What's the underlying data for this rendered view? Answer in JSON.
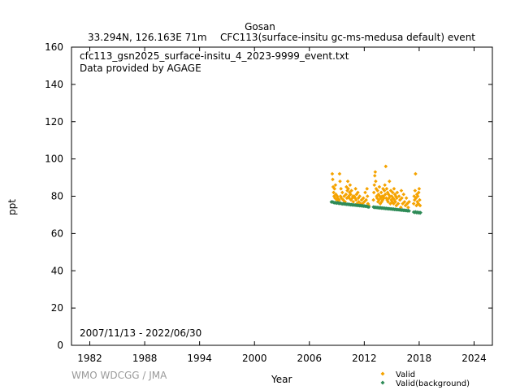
{
  "header": {
    "station": "Gosan",
    "location": "33.294N, 126.163E 71m",
    "species": "CFC113(surface-insitu gc-ms-medusa default) event"
  },
  "file_info": {
    "filename": "cfc113_gsn2025_surface-insitu_4_2023-9999_event.txt",
    "provider": "Data provided by AGAGE",
    "date_range": "2007/11/13 - 2022/06/30"
  },
  "footer": {
    "credit": "WMO WDCGG / JMA"
  },
  "colors": {
    "valid": "#f5a300",
    "background": "#2e8b57",
    "credit": "#9a9a9a"
  },
  "chart_data": {
    "type": "scatter",
    "xlabel": "Year",
    "ylabel": "ppt",
    "xlim": [
      1980,
      2026
    ],
    "ylim": [
      0,
      160
    ],
    "x_ticks": [
      1982,
      1988,
      1994,
      2000,
      2006,
      2012,
      2018,
      2024
    ],
    "y_ticks": [
      0,
      20,
      40,
      60,
      80,
      100,
      120,
      140,
      160
    ],
    "legend_position": "bottom-right, outside plot",
    "series": [
      {
        "name": "Valid",
        "marker": "diamond",
        "color": "#f5a300",
        "points": [
          [
            2008.5,
            92
          ],
          [
            2008.55,
            89
          ],
          [
            2008.6,
            85
          ],
          [
            2008.65,
            82
          ],
          [
            2008.7,
            80
          ],
          [
            2008.75,
            84
          ],
          [
            2008.8,
            79
          ],
          [
            2008.85,
            86
          ],
          [
            2008.9,
            81
          ],
          [
            2009.0,
            78
          ],
          [
            2009.05,
            80
          ],
          [
            2009.1,
            79
          ],
          [
            2009.2,
            77
          ],
          [
            2009.25,
            78
          ],
          [
            2009.3,
            92
          ],
          [
            2009.35,
            88
          ],
          [
            2009.4,
            80
          ],
          [
            2009.45,
            84
          ],
          [
            2009.5,
            79
          ],
          [
            2009.6,
            82
          ],
          [
            2009.7,
            78
          ],
          [
            2009.8,
            80
          ],
          [
            2009.9,
            77
          ],
          [
            2010.0,
            81
          ],
          [
            2010.05,
            85
          ],
          [
            2010.1,
            79
          ],
          [
            2010.15,
            83
          ],
          [
            2010.2,
            88
          ],
          [
            2010.25,
            84
          ],
          [
            2010.3,
            80
          ],
          [
            2010.35,
            79
          ],
          [
            2010.4,
            82
          ],
          [
            2010.45,
            86
          ],
          [
            2010.5,
            81
          ],
          [
            2010.55,
            78
          ],
          [
            2010.6,
            83
          ],
          [
            2010.7,
            79
          ],
          [
            2010.75,
            80
          ],
          [
            2010.8,
            77
          ],
          [
            2010.9,
            80
          ],
          [
            2011.0,
            79
          ],
          [
            2011.05,
            84
          ],
          [
            2011.1,
            78
          ],
          [
            2011.15,
            81
          ],
          [
            2011.2,
            76
          ],
          [
            2011.3,
            82
          ],
          [
            2011.35,
            79
          ],
          [
            2011.4,
            77
          ],
          [
            2011.5,
            80
          ],
          [
            2011.6,
            76
          ],
          [
            2011.7,
            78
          ],
          [
            2011.8,
            76
          ],
          [
            2011.9,
            79
          ],
          [
            2012.0,
            77
          ],
          [
            2012.1,
            82
          ],
          [
            2012.2,
            78
          ],
          [
            2012.3,
            84
          ],
          [
            2012.35,
            80
          ],
          [
            2012.4,
            76
          ],
          [
            2012.5,
            75
          ],
          [
            2013.0,
            78
          ],
          [
            2013.05,
            82
          ],
          [
            2013.1,
            86
          ],
          [
            2013.15,
            91
          ],
          [
            2013.2,
            93
          ],
          [
            2013.25,
            88
          ],
          [
            2013.3,
            84
          ],
          [
            2013.35,
            80
          ],
          [
            2013.4,
            79
          ],
          [
            2013.45,
            83
          ],
          [
            2013.5,
            77
          ],
          [
            2013.55,
            81
          ],
          [
            2013.6,
            78
          ],
          [
            2013.65,
            85
          ],
          [
            2013.7,
            80
          ],
          [
            2013.75,
            76
          ],
          [
            2013.8,
            79
          ],
          [
            2013.85,
            82
          ],
          [
            2013.9,
            77
          ],
          [
            2013.95,
            80
          ],
          [
            2014.0,
            78
          ],
          [
            2014.05,
            84
          ],
          [
            2014.1,
            80
          ],
          [
            2014.15,
            79
          ],
          [
            2014.2,
            83
          ],
          [
            2014.25,
            86
          ],
          [
            2014.3,
            81
          ],
          [
            2014.35,
            96
          ],
          [
            2014.4,
            79
          ],
          [
            2014.45,
            84
          ],
          [
            2014.5,
            78
          ],
          [
            2014.55,
            82
          ],
          [
            2014.6,
            77
          ],
          [
            2014.65,
            81
          ],
          [
            2014.7,
            79
          ],
          [
            2014.75,
            88
          ],
          [
            2014.8,
            80
          ],
          [
            2014.85,
            76
          ],
          [
            2014.9,
            83
          ],
          [
            2014.95,
            78
          ],
          [
            2015.0,
            80
          ],
          [
            2015.05,
            77
          ],
          [
            2015.1,
            82
          ],
          [
            2015.15,
            79
          ],
          [
            2015.2,
            76
          ],
          [
            2015.25,
            84
          ],
          [
            2015.3,
            78
          ],
          [
            2015.35,
            81
          ],
          [
            2015.4,
            77
          ],
          [
            2015.45,
            80
          ],
          [
            2015.5,
            75
          ],
          [
            2015.55,
            79
          ],
          [
            2015.6,
            82
          ],
          [
            2015.7,
            76
          ],
          [
            2015.8,
            80
          ],
          [
            2015.9,
            78
          ],
          [
            2016.0,
            74
          ],
          [
            2016.05,
            83
          ],
          [
            2016.1,
            79
          ],
          [
            2016.2,
            76
          ],
          [
            2016.3,
            81
          ],
          [
            2016.4,
            77
          ],
          [
            2016.5,
            75
          ],
          [
            2016.6,
            79
          ],
          [
            2016.7,
            76
          ],
          [
            2016.8,
            74
          ],
          [
            2016.9,
            77
          ],
          [
            2017.4,
            76
          ],
          [
            2017.45,
            80
          ],
          [
            2017.5,
            78
          ],
          [
            2017.55,
            83
          ],
          [
            2017.6,
            92
          ],
          [
            2017.65,
            79
          ],
          [
            2017.7,
            75
          ],
          [
            2017.75,
            81
          ],
          [
            2017.8,
            77
          ],
          [
            2017.85,
            80
          ],
          [
            2017.9,
            76
          ],
          [
            2017.95,
            82
          ],
          [
            2018.0,
            84
          ],
          [
            2018.05,
            78
          ],
          [
            2018.1,
            75
          ]
        ]
      },
      {
        "name": "Valid(background)",
        "marker": "diamond",
        "color": "#2e8b57",
        "points": [
          [
            2008.4,
            76.9
          ],
          [
            2008.5,
            77.0
          ],
          [
            2008.6,
            76.8
          ],
          [
            2008.7,
            76.5
          ],
          [
            2008.8,
            76.6
          ],
          [
            2008.9,
            76.4
          ],
          [
            2009.0,
            76.3
          ],
          [
            2009.1,
            76.5
          ],
          [
            2009.2,
            76.2
          ],
          [
            2009.3,
            76.1
          ],
          [
            2009.4,
            76.3
          ],
          [
            2009.5,
            76.0
          ],
          [
            2009.6,
            75.9
          ],
          [
            2009.7,
            76.0
          ],
          [
            2009.8,
            75.8
          ],
          [
            2009.9,
            75.9
          ],
          [
            2010.0,
            75.7
          ],
          [
            2010.1,
            75.6
          ],
          [
            2010.2,
            75.8
          ],
          [
            2010.3,
            75.5
          ],
          [
            2010.4,
            75.6
          ],
          [
            2010.5,
            75.4
          ],
          [
            2010.6,
            75.5
          ],
          [
            2010.7,
            75.3
          ],
          [
            2010.8,
            75.4
          ],
          [
            2010.9,
            75.2
          ],
          [
            2011.0,
            75.3
          ],
          [
            2011.1,
            75.1
          ],
          [
            2011.2,
            75.2
          ],
          [
            2011.3,
            75.0
          ],
          [
            2011.4,
            75.1
          ],
          [
            2011.5,
            74.9
          ],
          [
            2011.6,
            75.0
          ],
          [
            2011.7,
            74.8
          ],
          [
            2011.8,
            74.9
          ],
          [
            2011.9,
            74.7
          ],
          [
            2012.0,
            74.8
          ],
          [
            2012.1,
            74.6
          ],
          [
            2012.2,
            74.7
          ],
          [
            2012.3,
            74.5
          ],
          [
            2012.4,
            74.3
          ],
          [
            2012.5,
            74.2
          ],
          [
            2013.0,
            74.2
          ],
          [
            2013.1,
            74.0
          ],
          [
            2013.2,
            74.1
          ],
          [
            2013.3,
            73.9
          ],
          [
            2013.4,
            74.0
          ],
          [
            2013.5,
            73.8
          ],
          [
            2013.6,
            73.9
          ],
          [
            2013.7,
            73.7
          ],
          [
            2013.8,
            73.8
          ],
          [
            2013.9,
            73.6
          ],
          [
            2014.0,
            73.7
          ],
          [
            2014.1,
            73.5
          ],
          [
            2014.2,
            73.6
          ],
          [
            2014.3,
            73.4
          ],
          [
            2014.4,
            73.5
          ],
          [
            2014.5,
            73.3
          ],
          [
            2014.6,
            73.4
          ],
          [
            2014.7,
            73.2
          ],
          [
            2014.8,
            73.3
          ],
          [
            2014.9,
            73.1
          ],
          [
            2015.0,
            73.2
          ],
          [
            2015.1,
            73.0
          ],
          [
            2015.2,
            73.1
          ],
          [
            2015.3,
            72.9
          ],
          [
            2015.4,
            73.0
          ],
          [
            2015.5,
            72.8
          ],
          [
            2015.6,
            72.9
          ],
          [
            2015.7,
            72.7
          ],
          [
            2015.8,
            72.8
          ],
          [
            2015.9,
            72.6
          ],
          [
            2016.0,
            72.7
          ],
          [
            2016.1,
            72.5
          ],
          [
            2016.2,
            72.6
          ],
          [
            2016.3,
            72.4
          ],
          [
            2016.4,
            72.5
          ],
          [
            2016.5,
            72.3
          ],
          [
            2016.6,
            72.4
          ],
          [
            2016.7,
            72.2
          ],
          [
            2016.8,
            72.3
          ],
          [
            2016.9,
            72.1
          ],
          [
            2017.4,
            71.5
          ],
          [
            2017.5,
            71.3
          ],
          [
            2017.6,
            71.6
          ],
          [
            2017.7,
            71.2
          ],
          [
            2017.8,
            71.4
          ],
          [
            2017.9,
            71.1
          ],
          [
            2018.0,
            71.3
          ],
          [
            2018.1,
            71.0
          ],
          [
            2018.15,
            71.2
          ]
        ]
      }
    ]
  }
}
